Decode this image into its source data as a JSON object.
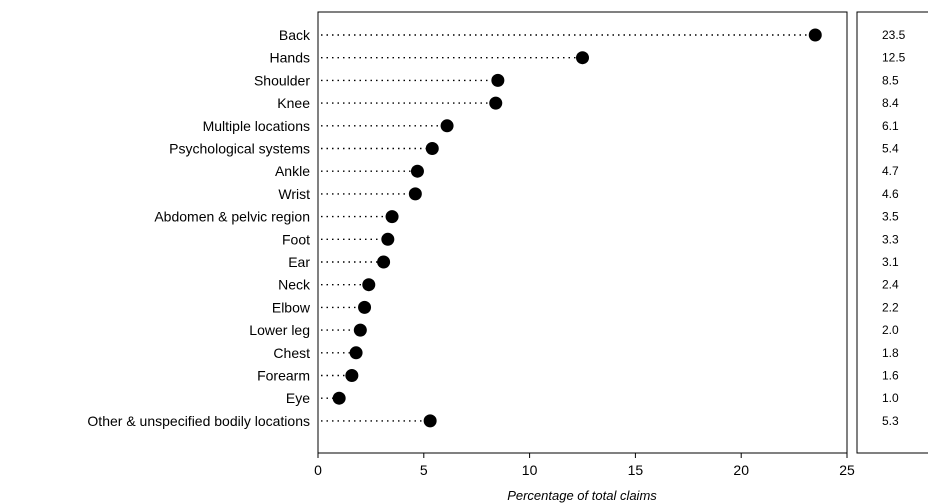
{
  "chart_data": {
    "type": "scatter",
    "categories": [
      "Back",
      "Hands",
      "Shoulder",
      "Knee",
      "Multiple locations",
      "Psychological systems",
      "Ankle",
      "Wrist",
      "Abdomen & pelvic region",
      "Foot",
      "Ear",
      "Neck",
      "Elbow",
      "Lower leg",
      "Chest",
      "Forearm",
      "Eye",
      "Other & unspecified bodily locations"
    ],
    "values": [
      23.5,
      12.5,
      8.5,
      8.4,
      6.1,
      5.4,
      4.7,
      4.6,
      3.5,
      3.3,
      3.1,
      2.4,
      2.2,
      2.0,
      1.8,
      1.6,
      1.0,
      5.3
    ],
    "value_labels": [
      "23.5",
      "12.5",
      "8.5",
      "8.4",
      "6.1",
      "5.4",
      "4.7",
      "4.6",
      "3.5",
      "3.3",
      "3.1",
      "2.4",
      "2.2",
      "2.0",
      "1.8",
      "1.6",
      "1.0",
      "5.3"
    ],
    "xlabel": "Percentage of total claims",
    "xlim": [
      0,
      25
    ],
    "xticks": [
      "0",
      "5",
      "10",
      "15",
      "20",
      "25"
    ],
    "grid": false,
    "marker": "filled-circle",
    "leader_lines": "dotted",
    "value_table_position": "right"
  }
}
